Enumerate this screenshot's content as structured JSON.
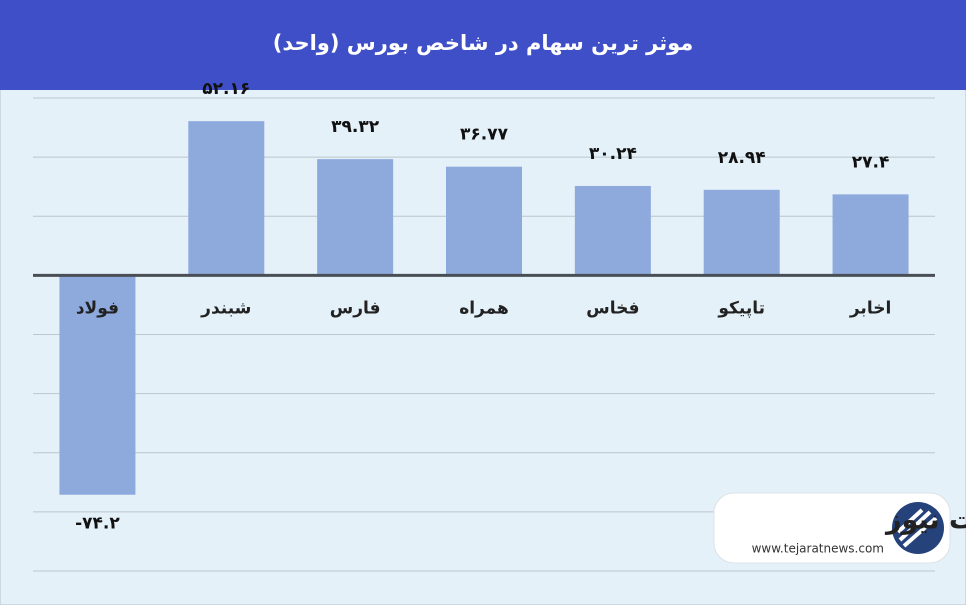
{
  "chart_data": {
    "type": "bar",
    "title": "موثر ترین سهام در شاخص بورس (واحد)",
    "categories": [
      "فولاد",
      "شبندر",
      "فارس",
      "همراه",
      "فخاس",
      "تاپیکو",
      "اخابر"
    ],
    "values": [
      -74.2,
      52.16,
      39.32,
      36.77,
      30.24,
      28.94,
      27.4
    ],
    "value_labels": [
      "-۷۴.۲",
      "۵۲.۱۶",
      "۳۹.۳۲",
      "۳۶.۷۷",
      "۳۰.۲۴",
      "۲۸.۹۴",
      "۲۷.۴"
    ],
    "color": "#8eaadd",
    "ylim": [
      -100,
      60
    ],
    "yticks": [
      -100,
      -80,
      -60,
      -40,
      -20,
      0,
      20,
      40,
      60
    ],
    "grid": true,
    "watermark": {
      "name": "تجارت نیوز",
      "url": "www.tejaratnews.com"
    }
  }
}
